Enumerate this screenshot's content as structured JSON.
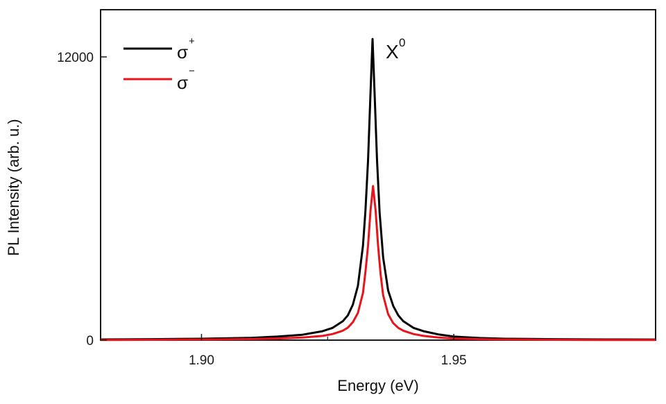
{
  "chart_data": {
    "type": "line",
    "title": "",
    "xlabel": "Energy (eV)",
    "ylabel": "PL Intensity (arb. u.)",
    "xlim": [
      1.88,
      1.99
    ],
    "ylim": [
      0,
      13000
    ],
    "x_ticks": [
      {
        "value": 1.9,
        "label": "1.90"
      },
      {
        "value": 1.95,
        "label": "1.95"
      }
    ],
    "x_minor_ticks": [
      1.925
    ],
    "y_ticks": [
      {
        "value": 0,
        "label": "0"
      },
      {
        "value": 12000,
        "label": "12000"
      }
    ],
    "grid": false,
    "legend_position": "upper-left",
    "annotations": [
      {
        "text": "X",
        "superscript": "0",
        "x": 1.9345,
        "y": 12600
      }
    ],
    "series": [
      {
        "name": "σ+",
        "label_base": "σ",
        "label_sup": "+",
        "color": "#000000",
        "peak_energy": 1.9339,
        "peak_intensity": 12760,
        "fwhm": 0.0036,
        "x": [
          1.88,
          1.89,
          1.9,
          1.91,
          1.915,
          1.92,
          1.924,
          1.926,
          1.928,
          1.929,
          1.93,
          1.931,
          1.932,
          1.9325,
          1.933,
          1.9335,
          1.9339,
          1.9343,
          1.9348,
          1.9353,
          1.936,
          1.937,
          1.938,
          1.939,
          1.94,
          1.942,
          1.944,
          1.947,
          1.95,
          1.955,
          1.96,
          1.97,
          1.98,
          1.99
        ],
        "values": [
          30,
          40,
          60,
          100,
          150,
          230,
          380,
          520,
          800,
          1050,
          1500,
          2300,
          4000,
          5500,
          7600,
          10500,
          12760,
          10500,
          7600,
          5400,
          3500,
          2100,
          1450,
          1050,
          800,
          520,
          380,
          240,
          150,
          90,
          60,
          40,
          30,
          25
        ]
      },
      {
        "name": "σ−",
        "label_base": "σ",
        "label_sup": "−",
        "color": "#e8141c",
        "peak_energy": 1.934,
        "peak_intensity": 6530,
        "fwhm": 0.003,
        "x": [
          1.88,
          1.89,
          1.9,
          1.91,
          1.915,
          1.92,
          1.924,
          1.926,
          1.928,
          1.929,
          1.93,
          1.931,
          1.932,
          1.9325,
          1.933,
          1.9335,
          1.934,
          1.9345,
          1.935,
          1.9355,
          1.936,
          1.937,
          1.938,
          1.939,
          1.94,
          1.942,
          1.944,
          1.947,
          1.95,
          1.955,
          1.96,
          1.97,
          1.98,
          1.99
        ],
        "values": [
          10,
          15,
          25,
          45,
          70,
          110,
          180,
          260,
          400,
          530,
          760,
          1150,
          2000,
          2900,
          4000,
          5500,
          6530,
          5500,
          4000,
          2800,
          1900,
          1100,
          720,
          520,
          400,
          260,
          180,
          110,
          70,
          40,
          25,
          15,
          10,
          10
        ]
      }
    ]
  }
}
